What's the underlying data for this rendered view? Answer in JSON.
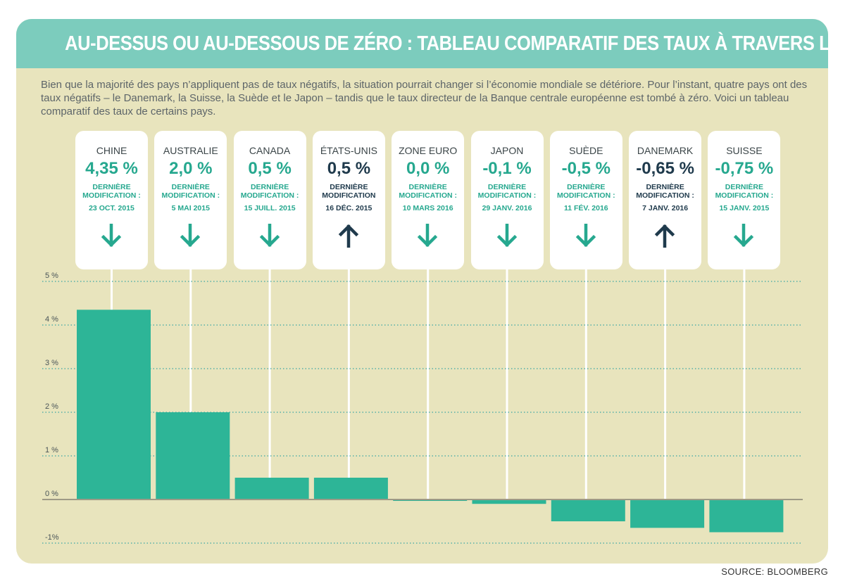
{
  "title": "AU-DESSUS OU AU-DESSOUS DE ZÉRO : TABLEAU COMPARATIF DES TAUX À TRAVERS LE MONDE",
  "intro": "Bien que la majorité des pays n’appliquent pas de taux négatifs, la situation pourrait changer si l’économie mondiale se détériore. Pour l’instant, quatre pays ont des taux négatifs – le Danemark, la Suisse, la Suède et le Japon – tandis que le taux directeur de la Banque centrale européenne est tombé à zéro. Voici un tableau comparatif des taux de certains pays.",
  "source": "SOURCE: BLOOMBERG",
  "colors": {
    "accent": "#7cccbd",
    "bar": "#2db597",
    "background": "#e8e4bd",
    "teal_text": "#26a88f",
    "navy_text": "#1f3a4c",
    "gridline": "#55b0a8"
  },
  "chart_data": {
    "type": "bar",
    "categories": [
      "CHINE",
      "AUSTRALIE",
      "CANADA",
      "ÉTATS-UNIS",
      "ZONE EURO",
      "JAPON",
      "SUÈDE",
      "DANEMARK",
      "SUISSE"
    ],
    "values": [
      4.35,
      2.0,
      0.5,
      0.5,
      0.0,
      -0.1,
      -0.5,
      -0.65,
      -0.75
    ],
    "value_labels": [
      "4,35 %",
      "2,0 %",
      "0,5 %",
      "0,5 %",
      "0,0 %",
      "-0,1 %",
      "-0,5 %",
      "-0,65 %",
      "-0,75 %"
    ],
    "last_change_label": [
      "DERNIÈRE MODIFICATION :",
      "DERNIÈRE MODIFICATION :",
      "DERNIÈRE MODIFICATION :",
      "DERNIÈRE MODIFICATION",
      "DERNIÈRE MODIFICATION :",
      "DERNIÈRE MODIFICATION :",
      "DERNIÈRE MODIFICATION :",
      "DERNIÈRE MODIFICATION :",
      "DERNIÈRE MODIFICATION :"
    ],
    "last_change_dates": [
      "23 OCT. 2015",
      "5 MAI 2015",
      "15 JUILL. 2015",
      "16 DÉC. 2015",
      "10 MARS 2016",
      "29 JANV. 2016",
      "11 FÉV. 2016",
      "7 JANV. 2016",
      "15 JANV. 2015"
    ],
    "direction": [
      "down",
      "down",
      "down",
      "up",
      "down",
      "down",
      "down",
      "up",
      "down"
    ],
    "yticks": [
      5,
      4,
      3,
      2,
      1,
      0,
      -1
    ],
    "ytick_labels": [
      "5 %",
      "4 %",
      "3 %",
      "2 %",
      "1 %",
      "0 %",
      "-1%"
    ],
    "ylim": [
      -1,
      5
    ],
    "grid": true,
    "title": "AU-DESSUS OU AU-DESSOUS DE ZÉRO : TABLEAU COMPARATIF DES TAUX À TRAVERS LE MONDE",
    "xlabel": "",
    "ylabel": ""
  }
}
